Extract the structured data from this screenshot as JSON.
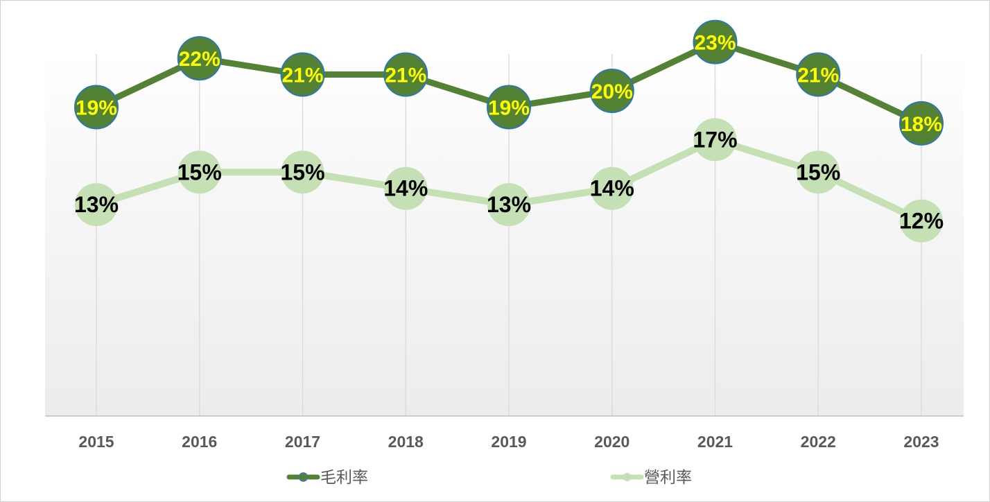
{
  "chart_data": {
    "type": "line",
    "categories": [
      "2015",
      "2016",
      "2017",
      "2018",
      "2019",
      "2020",
      "2021",
      "2022",
      "2023"
    ],
    "series": [
      {
        "name": "毛利率",
        "values": [
          19,
          22,
          21,
          21,
          19,
          20,
          23,
          21,
          18
        ],
        "labels": [
          "19%",
          "22%",
          "21%",
          "21%",
          "19%",
          "20%",
          "23%",
          "21%",
          "18%"
        ],
        "color": "#548235",
        "marker_fill": "#548235",
        "marker_border": "#2e75b6",
        "label_color": "#ffff00"
      },
      {
        "name": "營利率",
        "values": [
          13,
          15,
          15,
          14,
          13,
          14,
          17,
          15,
          12
        ],
        "labels": [
          "13%",
          "15%",
          "15%",
          "14%",
          "13%",
          "14%",
          "17%",
          "15%",
          "12%"
        ],
        "color": "#c5e0b4",
        "marker_fill": "#c5e0b4",
        "marker_border": "#c5e0b4",
        "label_color": "#000000"
      }
    ],
    "title": "",
    "xlabel": "",
    "ylabel": "",
    "ylim": [
      0,
      25
    ],
    "grid": "vertical",
    "legend": "bottom"
  }
}
